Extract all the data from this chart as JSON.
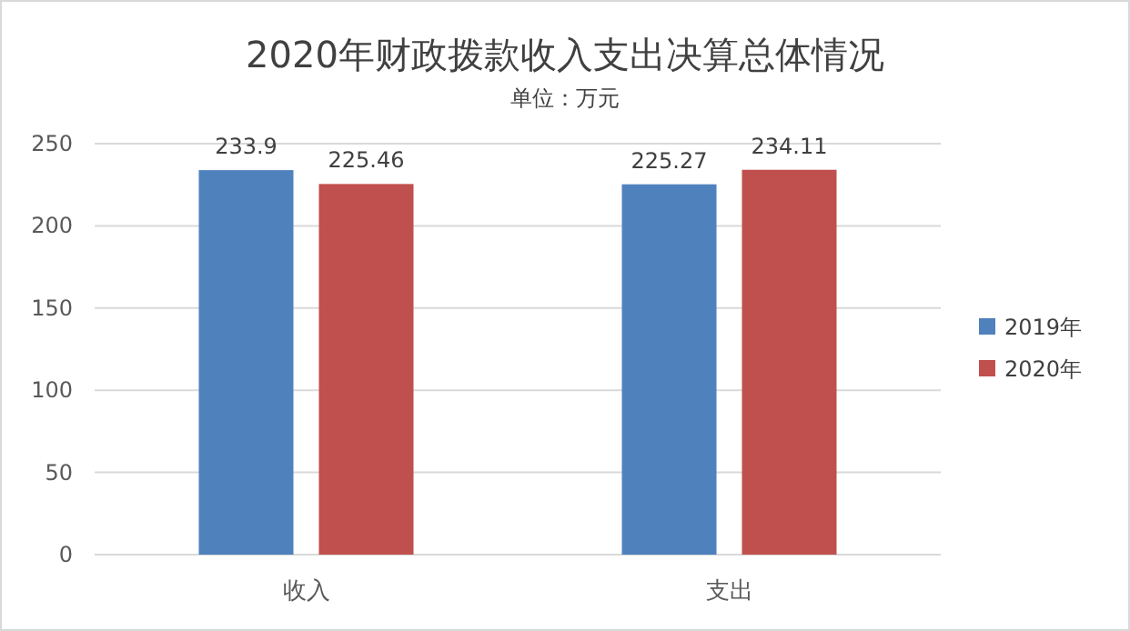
{
  "chart_data": {
    "type": "bar",
    "title": "2020年财政拨款收入支出决算总体情况",
    "subtitle": "单位：万元",
    "categories": [
      "收入",
      "支出"
    ],
    "series": [
      {
        "name": "2019年",
        "color": "#4f81bd",
        "values": [
          233.9,
          225.27
        ]
      },
      {
        "name": "2020年",
        "color": "#c0504d",
        "values": [
          225.46,
          234.11
        ]
      }
    ],
    "ylim": [
      0,
      250
    ],
    "yticks": [
      0,
      50,
      100,
      150,
      200,
      250
    ],
    "grid": "y",
    "legend": "right",
    "data_labels": true
  }
}
